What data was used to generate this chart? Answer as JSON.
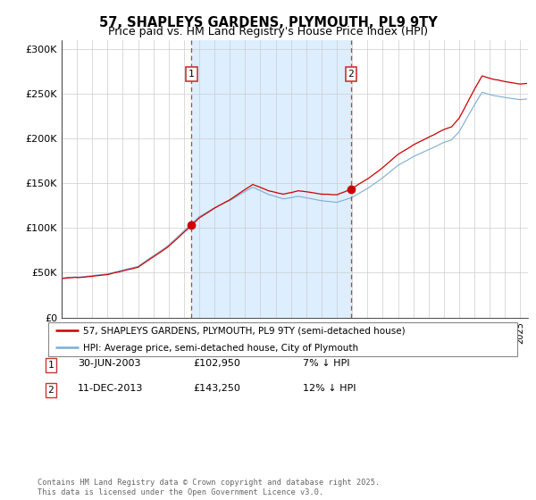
{
  "title": "57, SHAPLEYS GARDENS, PLYMOUTH, PL9 9TY",
  "subtitle": "Price paid vs. HM Land Registry's House Price Index (HPI)",
  "ylabel_ticks": [
    "£0",
    "£50K",
    "£100K",
    "£150K",
    "£200K",
    "£250K",
    "£300K"
  ],
  "ytick_vals": [
    0,
    50000,
    100000,
    150000,
    200000,
    250000,
    300000
  ],
  "ylim": [
    0,
    310000
  ],
  "xlim_start": 1995.0,
  "xlim_end": 2025.5,
  "sale1_x": 2003.5,
  "sale1_y": 102950,
  "sale2_x": 2013.92,
  "sale2_y": 143250,
  "vline1_x": 2003.5,
  "vline2_x": 2013.92,
  "red_line_color": "#cc0000",
  "blue_line_color": "#7aaed6",
  "shade_color": "#ddeeff",
  "legend_line1": "57, SHAPLEYS GARDENS, PLYMOUTH, PL9 9TY (semi-detached house)",
  "legend_line2": "HPI: Average price, semi-detached house, City of Plymouth",
  "note1_label": "1",
  "note1_date": "30-JUN-2003",
  "note1_price": "£102,950",
  "note1_hpi": "7% ↓ HPI",
  "note2_label": "2",
  "note2_date": "11-DEC-2013",
  "note2_price": "£143,250",
  "note2_hpi": "12% ↓ HPI",
  "footer": "Contains HM Land Registry data © Crown copyright and database right 2025.\nThis data is licensed under the Open Government Licence v3.0."
}
